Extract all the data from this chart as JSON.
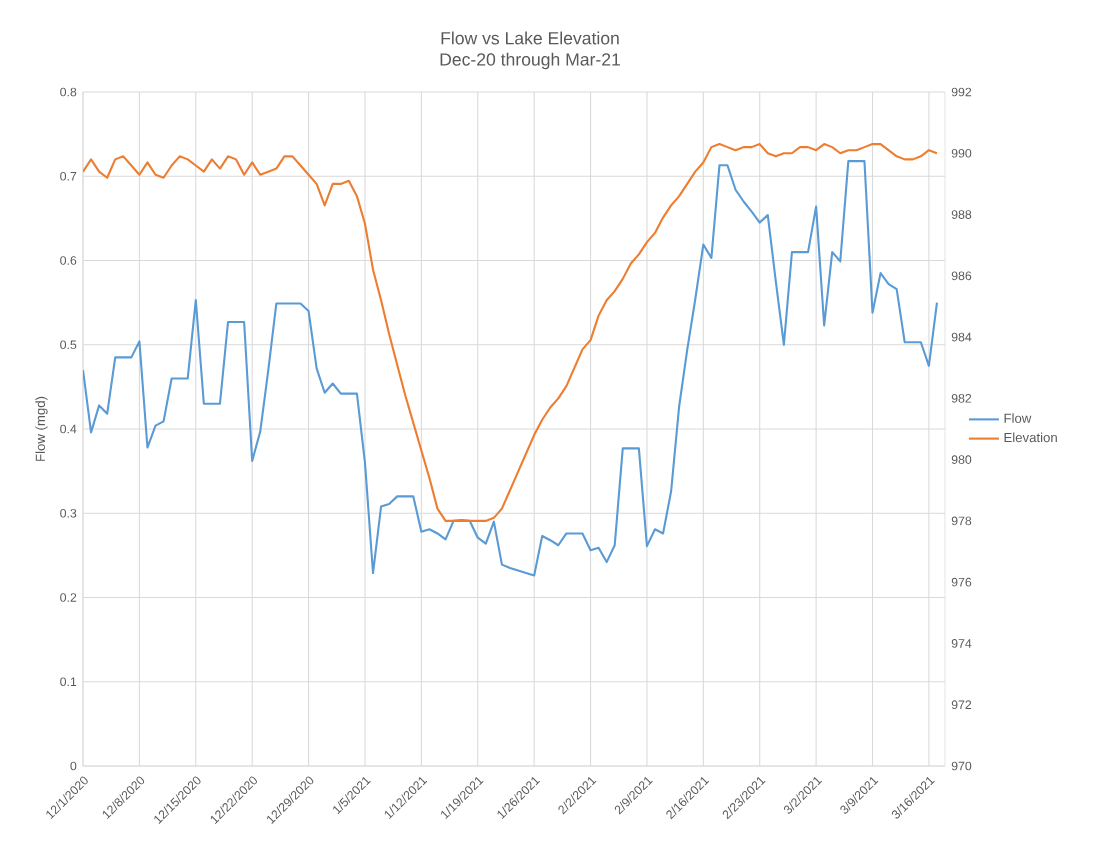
{
  "chart_data": {
    "type": "line",
    "title": "Flow vs Lake Elevation",
    "subtitle": "Dec-20 through Mar-21",
    "ylabel": "Flow (mgd)",
    "x": [
      "2020-12-01",
      "2020-12-02",
      "2020-12-03",
      "2020-12-04",
      "2020-12-05",
      "2020-12-06",
      "2020-12-07",
      "2020-12-08",
      "2020-12-09",
      "2020-12-10",
      "2020-12-11",
      "2020-12-12",
      "2020-12-13",
      "2020-12-14",
      "2020-12-15",
      "2020-12-16",
      "2020-12-17",
      "2020-12-18",
      "2020-12-19",
      "2020-12-20",
      "2020-12-21",
      "2020-12-22",
      "2020-12-23",
      "2020-12-24",
      "2020-12-25",
      "2020-12-26",
      "2020-12-27",
      "2020-12-28",
      "2020-12-29",
      "2020-12-30",
      "2020-12-31",
      "2021-01-01",
      "2021-01-02",
      "2021-01-03",
      "2021-01-04",
      "2021-01-05",
      "2021-01-06",
      "2021-01-07",
      "2021-01-08",
      "2021-01-09",
      "2021-01-10",
      "2021-01-11",
      "2021-01-12",
      "2021-01-13",
      "2021-01-14",
      "2021-01-15",
      "2021-01-16",
      "2021-01-17",
      "2021-01-18",
      "2021-01-19",
      "2021-01-20",
      "2021-01-21",
      "2021-01-22",
      "2021-01-23",
      "2021-01-24",
      "2021-01-25",
      "2021-01-26",
      "2021-01-27",
      "2021-01-28",
      "2021-01-29",
      "2021-01-30",
      "2021-01-31",
      "2021-02-01",
      "2021-02-02",
      "2021-02-03",
      "2021-02-04",
      "2021-02-05",
      "2021-02-06",
      "2021-02-07",
      "2021-02-08",
      "2021-02-09",
      "2021-02-10",
      "2021-02-11",
      "2021-02-12",
      "2021-02-13",
      "2021-02-14",
      "2021-02-15",
      "2021-02-16",
      "2021-02-17",
      "2021-02-18",
      "2021-02-19",
      "2021-02-20",
      "2021-02-21",
      "2021-02-22",
      "2021-02-23",
      "2021-02-24",
      "2021-02-25",
      "2021-02-26",
      "2021-02-27",
      "2021-02-28",
      "2021-03-01",
      "2021-03-02",
      "2021-03-03",
      "2021-03-04",
      "2021-03-05",
      "2021-03-06",
      "2021-03-07",
      "2021-03-08",
      "2021-03-09",
      "2021-03-10",
      "2021-03-11",
      "2021-03-12",
      "2021-03-13",
      "2021-03-14",
      "2021-03-15",
      "2021-03-16",
      "2021-03-17"
    ],
    "series": [
      {
        "name": "Flow",
        "color": "#5b9bd5",
        "values": [
          0.47,
          0.396,
          0.428,
          0.418,
          0.485,
          0.485,
          0.485,
          0.504,
          0.378,
          0.404,
          0.409,
          0.46,
          0.46,
          0.46,
          0.553,
          0.43,
          0.43,
          0.43,
          0.527,
          0.527,
          0.527,
          0.362,
          0.397,
          0.47,
          0.549,
          0.549,
          0.549,
          0.549,
          0.54,
          0.472,
          0.443,
          0.454,
          0.442,
          0.442,
          0.442,
          0.36,
          0.229,
          0.308,
          0.311,
          0.32,
          0.32,
          0.32,
          0.278,
          0.281,
          0.276,
          0.269,
          0.291,
          0.292,
          0.291,
          0.271,
          0.264,
          0.29,
          0.239,
          0.235,
          0.232,
          0.229,
          0.226,
          0.273,
          0.268,
          0.262,
          0.276,
          0.276,
          0.276,
          0.256,
          0.259,
          0.242,
          0.262,
          0.377,
          0.377,
          0.377,
          0.261,
          0.281,
          0.276,
          0.326,
          0.427,
          0.494,
          0.554,
          0.619,
          0.603,
          0.713,
          0.713,
          0.684,
          0.67,
          0.658,
          0.645,
          0.654,
          0.575,
          0.5,
          0.61,
          0.61,
          0.61,
          0.664,
          0.523,
          0.61,
          0.599,
          0.718,
          0.718,
          0.718,
          0.538,
          0.585,
          0.572,
          0.566,
          0.503,
          0.503,
          0.503,
          0.475,
          0.55
        ]
      },
      {
        "name": "Elevation",
        "color": "#ed7d31",
        "axis": "y2",
        "values": [
          989.4,
          989.8,
          989.4,
          989.2,
          989.8,
          989.9,
          989.6,
          989.3,
          989.7,
          989.3,
          989.2,
          989.6,
          989.9,
          989.8,
          989.6,
          989.4,
          989.8,
          989.5,
          989.9,
          989.8,
          989.3,
          989.7,
          989.3,
          989.4,
          989.5,
          989.9,
          989.9,
          989.6,
          989.3,
          989.0,
          988.3,
          989.0,
          989.0,
          989.1,
          988.6,
          987.7,
          986.2,
          985.2,
          984.1,
          983.1,
          982.1,
          981.2,
          980.3,
          979.4,
          978.4,
          978.0,
          978.0,
          978.0,
          978.0,
          978.0,
          978.0,
          978.1,
          978.4,
          979.0,
          979.6,
          980.2,
          980.8,
          981.3,
          981.7,
          982.0,
          982.4,
          983.0,
          983.6,
          983.9,
          984.7,
          985.2,
          985.5,
          985.9,
          986.4,
          986.7,
          987.1,
          987.4,
          987.9,
          988.3,
          988.6,
          989.0,
          989.4,
          989.7,
          990.2,
          990.3,
          990.2,
          990.1,
          990.2,
          990.2,
          990.3,
          990.0,
          989.9,
          990.0,
          990.0,
          990.2,
          990.2,
          990.1,
          990.3,
          990.2,
          990.0,
          990.1,
          990.1,
          990.2,
          990.3,
          990.3,
          990.1,
          989.9,
          989.8,
          989.8,
          989.9,
          990.1,
          990.0
        ]
      }
    ],
    "xlim": [
      "2020-12-01",
      "2021-03-18"
    ],
    "xticks": [
      {
        "value": "2020-12-01",
        "label": "12/1/2020"
      },
      {
        "value": "2020-12-08",
        "label": "12/8/2020"
      },
      {
        "value": "2020-12-15",
        "label": "12/15/2020"
      },
      {
        "value": "2020-12-22",
        "label": "12/22/2020"
      },
      {
        "value": "2020-12-29",
        "label": "12/29/2020"
      },
      {
        "value": "2021-01-05",
        "label": "1/5/2021"
      },
      {
        "value": "2021-01-12",
        "label": "1/12/2021"
      },
      {
        "value": "2021-01-19",
        "label": "1/19/2021"
      },
      {
        "value": "2021-01-26",
        "label": "1/26/2021"
      },
      {
        "value": "2021-02-02",
        "label": "2/2/2021"
      },
      {
        "value": "2021-02-09",
        "label": "2/9/2021"
      },
      {
        "value": "2021-02-16",
        "label": "2/16/2021"
      },
      {
        "value": "2021-02-23",
        "label": "2/23/2021"
      },
      {
        "value": "2021-03-02",
        "label": "3/2/2021"
      },
      {
        "value": "2021-03-09",
        "label": "3/9/2021"
      },
      {
        "value": "2021-03-16",
        "label": "3/16/2021"
      }
    ],
    "ylim": [
      0,
      0.8
    ],
    "yticks": [
      0,
      0.1,
      0.2,
      0.3,
      0.4,
      0.5,
      0.6,
      0.7,
      0.8
    ],
    "y2lim": [
      970,
      992
    ],
    "y2ticks": [
      970,
      972,
      974,
      976,
      978,
      980,
      982,
      984,
      986,
      988,
      990,
      992
    ],
    "grid": true,
    "legend": "right"
  }
}
